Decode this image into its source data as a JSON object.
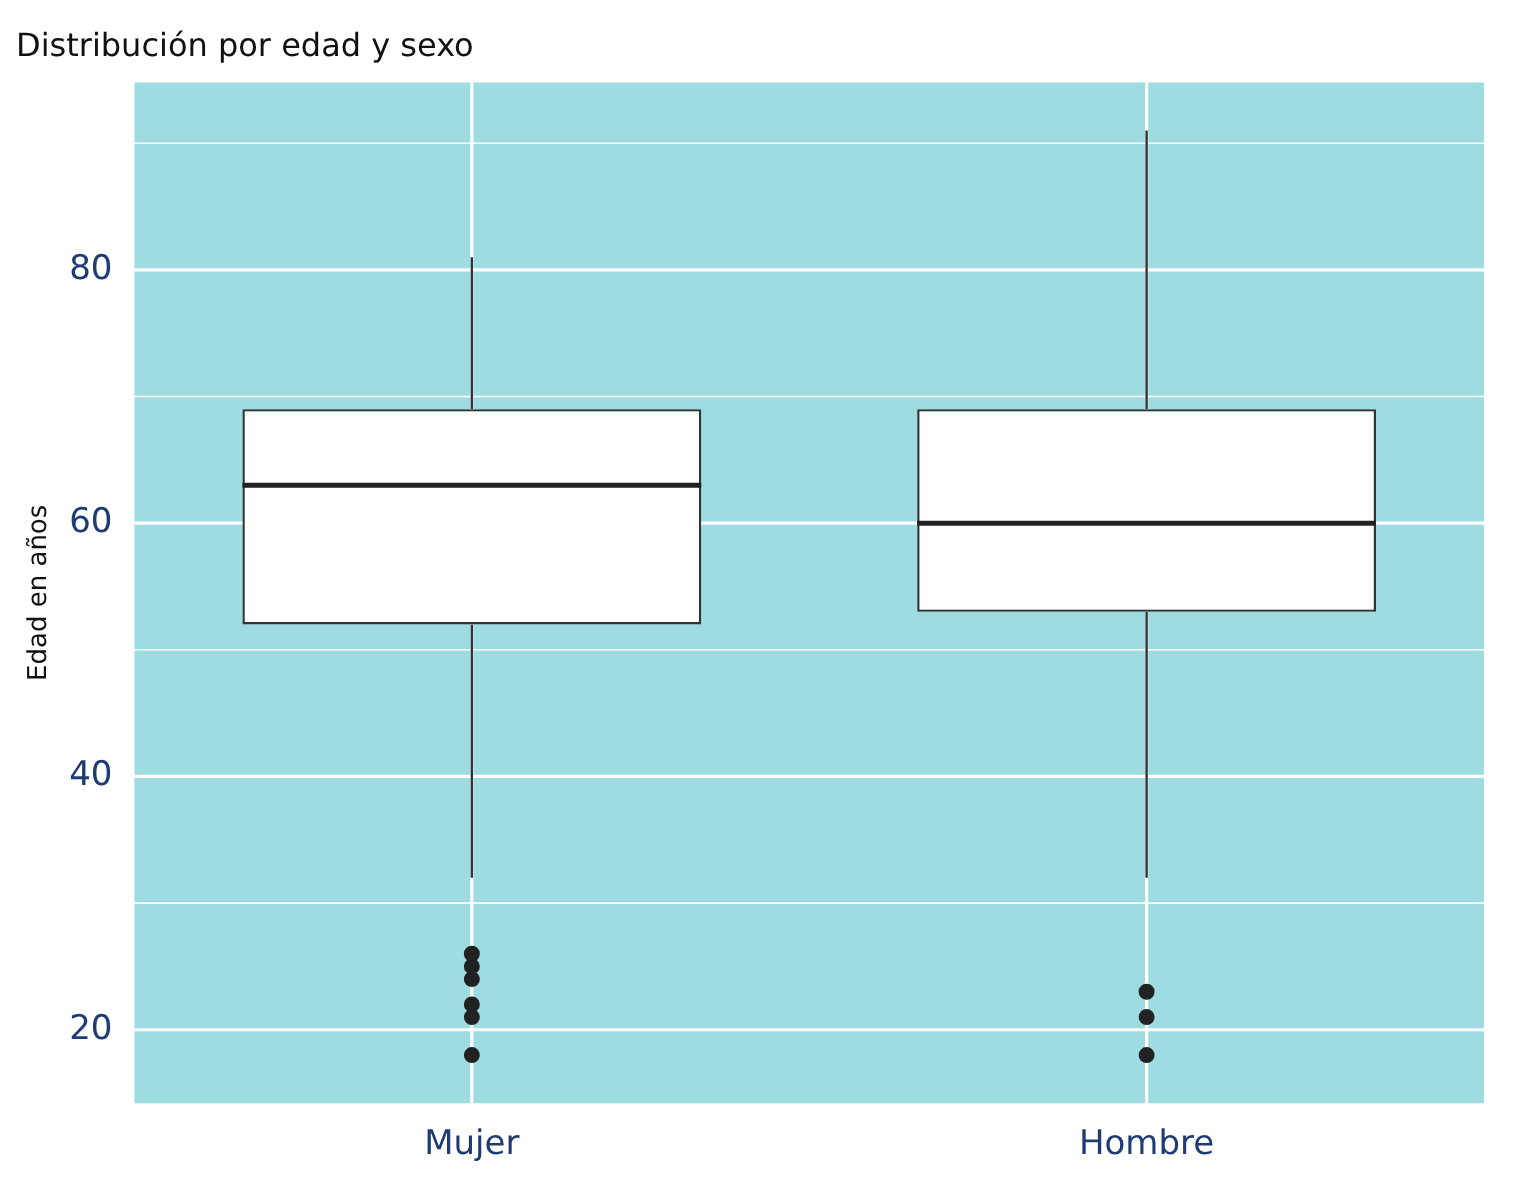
{
  "chart_data": {
    "type": "box",
    "title": "Distribución por edad y sexo",
    "ylabel": "Edad en años",
    "categories": [
      "Mujer",
      "Hombre"
    ],
    "boxes": [
      {
        "low": 32,
        "q1": 52,
        "median": 63,
        "q3": 69,
        "high": 81,
        "outliers": [
          26,
          25,
          24,
          22,
          21,
          18
        ]
      },
      {
        "low": 32,
        "q1": 53,
        "median": 60,
        "q3": 69,
        "high": 91,
        "outliers": [
          23,
          21,
          18
        ]
      }
    ],
    "ylim": [
      14.2,
      94.8
    ],
    "yticks": [
      20,
      {
        "value": 30,
        "label": null
      },
      40,
      {
        "value": 50,
        "label": null
      },
      60,
      {
        "value": 70,
        "label": null
      },
      80,
      {
        "value": 90,
        "label": null
      }
    ],
    "grid": true
  }
}
